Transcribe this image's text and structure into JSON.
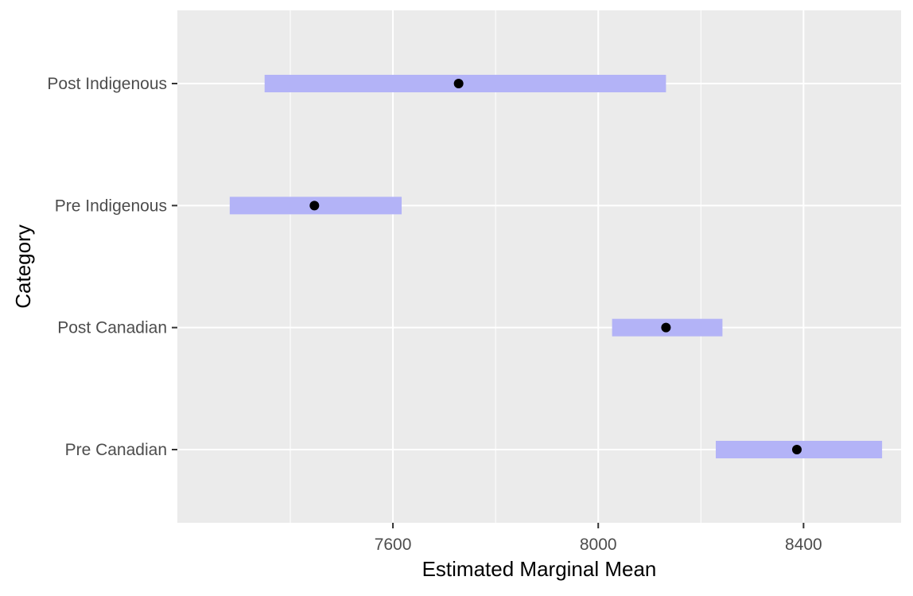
{
  "chart_data": {
    "type": "interval",
    "orientation": "horizontal",
    "title": "",
    "xlabel": "Estimated Marginal Mean",
    "ylabel": "Category",
    "xlim": [
      7180,
      8590
    ],
    "x_ticks": [
      {
        "value": 7600,
        "label": "7600"
      },
      {
        "value": 8000,
        "label": "8000"
      },
      {
        "value": 8400,
        "label": "8400"
      }
    ],
    "x_minor_gridlines": [
      7400,
      7800,
      8200
    ],
    "categories": [
      "Post Indigenous",
      "Pre Indigenous",
      "Post Canadian",
      "Pre Canadian"
    ],
    "series": [
      {
        "points": [
          {
            "category": "Post Indigenous",
            "estimate": 7728,
            "lower": 7350,
            "upper": 8132
          },
          {
            "category": "Pre Indigenous",
            "estimate": 7447,
            "lower": 7282,
            "upper": 7617
          },
          {
            "category": "Post Canadian",
            "estimate": 8132,
            "lower": 8027,
            "upper": 8242
          },
          {
            "category": "Pre Canadian",
            "estimate": 8387,
            "lower": 8229,
            "upper": 8553
          }
        ]
      }
    ],
    "grid": true,
    "legend": "none",
    "colors": {
      "panel_background": "#ebebeb",
      "gridline": "#ffffff",
      "interval": "#b3b3f7",
      "point": "#000000",
      "tick": "#333333"
    }
  }
}
